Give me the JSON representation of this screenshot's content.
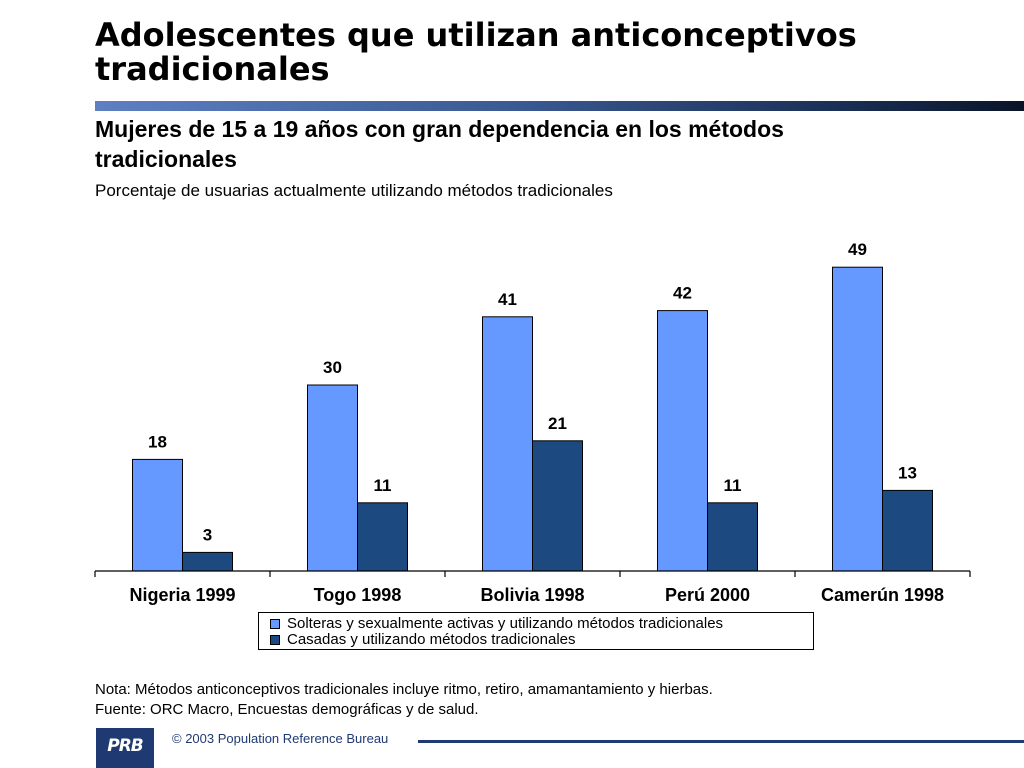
{
  "header": {
    "title": "Adolescentes que utilizan anticonceptivos tradicionales",
    "subtitle": "Mujeres de 15 a 19 años con gran dependencia en los métodos tradicionales",
    "unit_label": "Porcentaje de usuarias actualmente utilizando métodos tradicionales"
  },
  "colors": {
    "series1": "#6699ff",
    "series2": "#1c4a80",
    "title_bar_start": "#5e80c2",
    "title_bar_end": "#0a1428",
    "brand": "#1f3a73"
  },
  "chart_data": {
    "type": "bar",
    "title": "",
    "xlabel": "",
    "ylabel": "",
    "ylim": [
      0,
      55
    ],
    "grid": false,
    "legend_position": "bottom",
    "categories": [
      "Nigeria 1999",
      "Togo 1998",
      "Bolivia 1998",
      "Perú 2000",
      "Camerún 1998"
    ],
    "series": [
      {
        "name": "Solteras y sexualmente activas y utilizando métodos tradicionales",
        "values": [
          18,
          30,
          41,
          42,
          49
        ]
      },
      {
        "name": "Casadas y utilizando métodos tradicionales",
        "values": [
          3,
          11,
          21,
          11,
          13
        ]
      }
    ]
  },
  "notes": {
    "note": "Nota: Métodos anticonceptivos tradicionales incluye ritmo, retiro, amamantamiento y hierbas.",
    "source": "Fuente: ORC Macro, Encuestas demográficas y de salud."
  },
  "footer": {
    "logo_text": "PRB",
    "copyright": "© 2003 Population Reference Bureau"
  }
}
